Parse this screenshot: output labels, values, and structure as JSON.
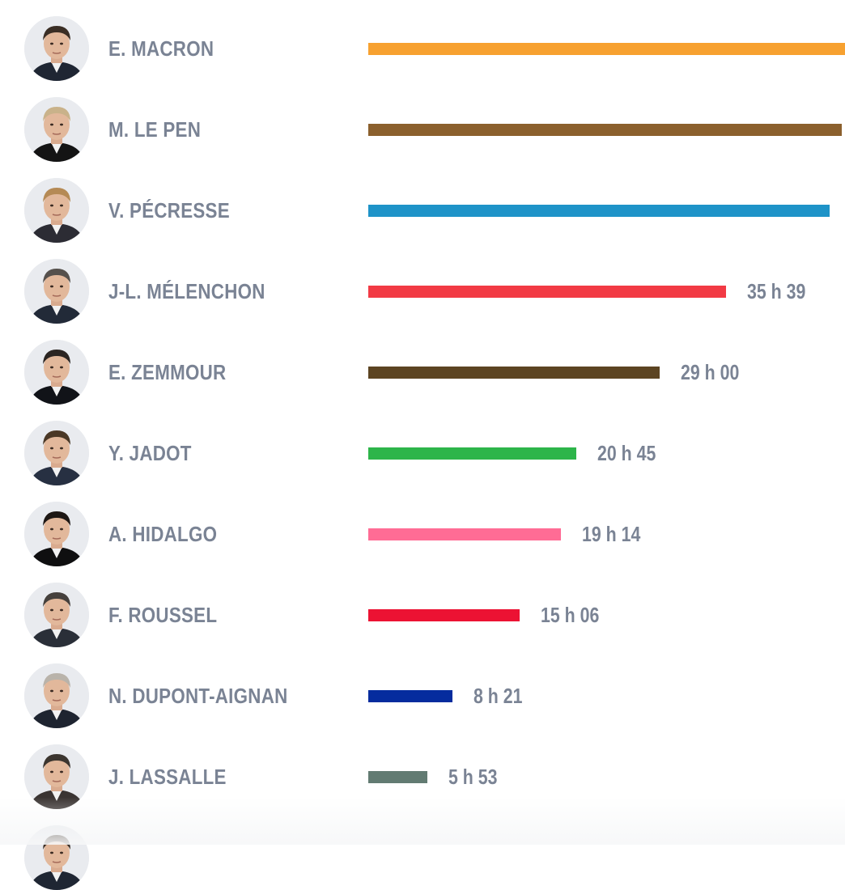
{
  "chart_data": {
    "type": "bar",
    "orientation": "horizontal",
    "value_unit": "hours",
    "xlim": [
      0,
      47.5
    ],
    "categories": [
      "E. MACRON",
      "M. LE PEN",
      "V. PÉCRESSE",
      "J-L. MÉLENCHON",
      "E. ZEMMOUR",
      "Y. JADOT",
      "A. HIDALGO",
      "F. ROUSSEL",
      "N. DUPONT-AIGNAN",
      "J. LASSALLE"
    ],
    "values": [
      47.5,
      47.2,
      46.0,
      35.65,
      29.0,
      20.75,
      19.23,
      15.1,
      8.35,
      5.88
    ],
    "value_labels": [
      "",
      "",
      "",
      "35 h 39",
      "29 h 00",
      "20 h 45",
      "19 h 14",
      "15 h 06",
      "8 h 21",
      "5 h 53"
    ],
    "colors": [
      "#f7a130",
      "#8b602d",
      "#1e93c8",
      "#f23a44",
      "#5c4422",
      "#2db54a",
      "#ff6c95",
      "#ec1233",
      "#052c9e",
      "#627b72"
    ],
    "title": "",
    "xlabel": "",
    "ylabel": "",
    "grid": false,
    "legend": "none"
  }
}
